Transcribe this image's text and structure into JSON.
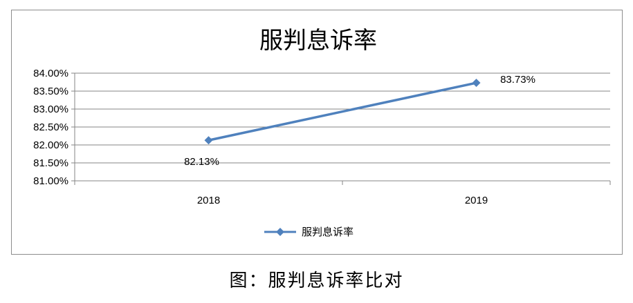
{
  "chart_data": {
    "type": "line",
    "title": "服判息诉率",
    "categories": [
      "2018",
      "2019"
    ],
    "series": [
      {
        "name": "服判息诉率",
        "values": [
          82.13,
          83.73
        ],
        "data_labels": [
          "82.13%",
          "83.73%"
        ],
        "color": "#4F81BD"
      }
    ],
    "y_ticks": [
      "84.00%",
      "83.50%",
      "83.00%",
      "82.50%",
      "82.00%",
      "81.50%",
      "81.00%"
    ],
    "ylim": [
      81.0,
      84.0
    ],
    "y_step": 0.5,
    "grid": true,
    "legend": "bottom",
    "xlabel": "",
    "ylabel": ""
  },
  "caption": "图：服判息诉率比对"
}
